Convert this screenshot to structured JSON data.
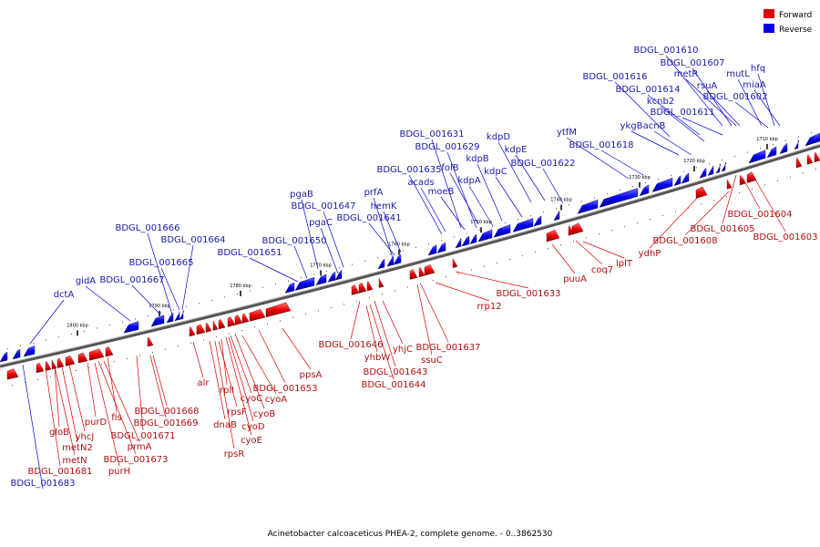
{
  "legend": {
    "forward_label": "Forward",
    "reverse_label": "Reverse",
    "forward_color": "#e00000",
    "reverse_color": "#0000e6"
  },
  "caption": "Acinetobacter calcoaceticus PHEA-2, complete genome. - 0..3862530",
  "ticks": [
    "1710 kbp",
    "1720 kbp",
    "1730 kbp",
    "1740 kbp",
    "1750 kbp",
    "1760 kbp",
    "1770 kbp",
    "1780 kbp",
    "1790 kbp",
    "1800 kbp"
  ],
  "reverse_labels": [
    "BDGL_001610",
    "BDGL_001607",
    "metR",
    "mutL",
    "hfq",
    "rsuA",
    "miaA",
    "BDGL_001616",
    "BDGL_001614",
    "BDGL_001602",
    "kcnb2",
    "BDGL_001611",
    "ykgB",
    "acnB",
    "ytfM",
    "BDGL_001631",
    "kdpD",
    "BDGL_001629",
    "kdpE",
    "BDGL_001618",
    "kdpB",
    "folB",
    "BDGL_001622",
    "BDGL_001635",
    "kdpC",
    "acads",
    "kdpA",
    "moeB",
    "prfA",
    "pgaB",
    "BDGL_001647",
    "hemK",
    "pgaC",
    "BDGL_001641",
    "BDGL_001666",
    "BDGL_001664",
    "BDGL_001650",
    "BDGL_001651",
    "BDGL_001665",
    "gidA",
    "BDGL_001667",
    "dctA",
    "BDGL_001683"
  ],
  "forward_labels": [
    "BDGL_001604",
    "BDGL_001605",
    "BDGL_001603",
    "BDGL_001608",
    "ydhP",
    "lplT",
    "coq7",
    "puuA",
    "BDGL_001633",
    "rrp12",
    "BDGL_001646",
    "BDGL_001637",
    "yhjC",
    "yhbW",
    "ssuC",
    "BDGL_001643",
    "BDGL_001644",
    "ppsA",
    "alr",
    "rplI",
    "cyoC",
    "cyoA",
    "BDGL_001653",
    "rpsF",
    "cyoB",
    "dnaB",
    "cyoD",
    "cyoE",
    "rpsR",
    "BDGL_001668",
    "BDGL_001669",
    "BDGL_001671",
    "fis",
    "purD",
    "gloB",
    "yhcJ",
    "metN2",
    "prmA",
    "metN",
    "BDGL_001673",
    "BDGL_001681",
    "purH"
  ]
}
